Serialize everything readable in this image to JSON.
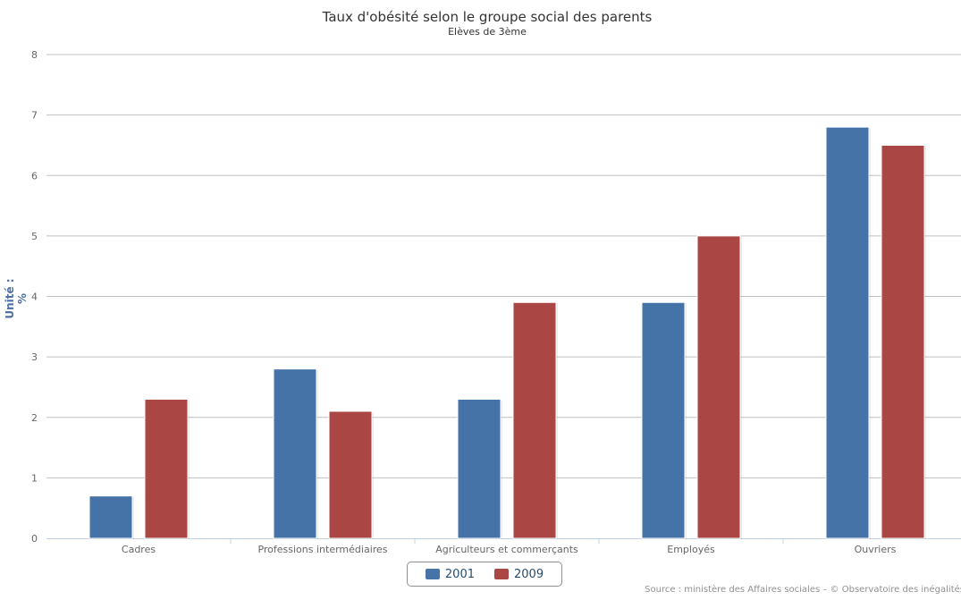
{
  "chart_data": {
    "type": "bar",
    "title": "Taux d'obésité selon le groupe social des parents",
    "subtitle": "Elèves de 3ème",
    "xlabel": "",
    "ylabel": "Unité : %",
    "ylim": [
      0,
      8
    ],
    "yticks": [
      "0",
      "1",
      "2",
      "3",
      "4",
      "5",
      "6",
      "7",
      "8"
    ],
    "grid": true,
    "legend_position": "bottom-center",
    "categories": [
      "Cadres",
      "Professions intermédiaires",
      "Agriculteurs et commerçants",
      "Employés",
      "Ouvriers"
    ],
    "series": [
      {
        "name": "2001",
        "color": "#4572a7",
        "values": [
          0.7,
          2.8,
          2.3,
          3.9,
          6.8
        ]
      },
      {
        "name": "2009",
        "color": "#aa4643",
        "values": [
          2.3,
          2.1,
          3.9,
          5.0,
          6.5
        ]
      }
    ],
    "source": "Source : ministère des Affaires sociales – © Observatoire des inégalités"
  }
}
